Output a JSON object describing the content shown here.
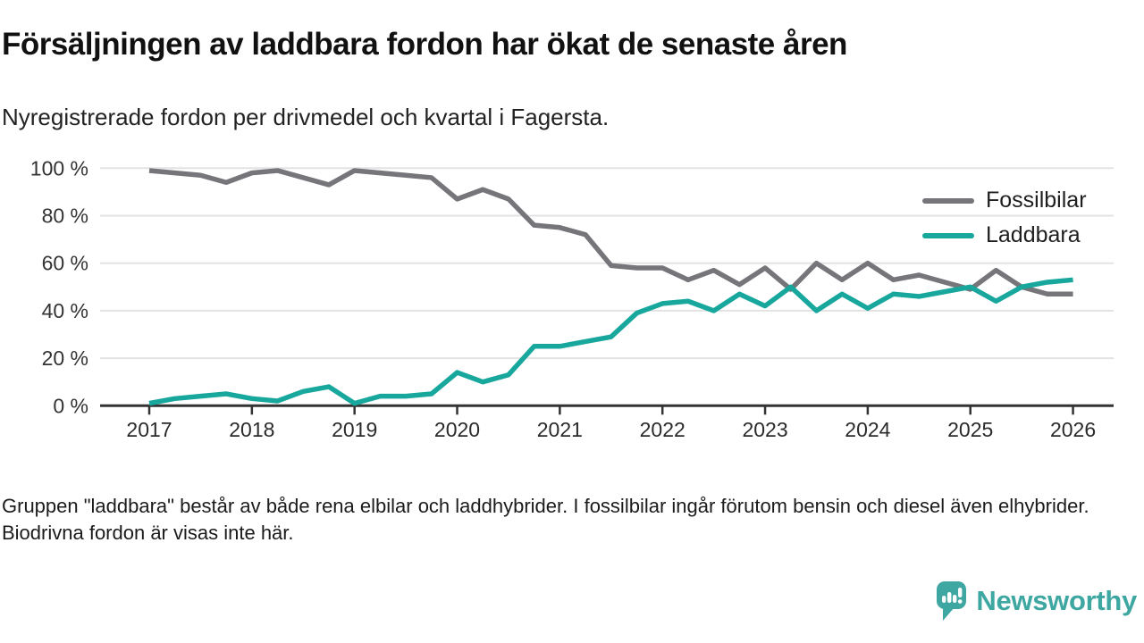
{
  "header": {
    "title": "Försäljningen av laddbara fordon har ökat de senaste åren",
    "subtitle": "Nyregistrerade fordon per drivmedel och kvartal i Fagersta."
  },
  "footer": {
    "note": "Gruppen \"laddbara\" består av både rena elbilar och laddhybrider. I fossilbilar ingår förutom bensin och diesel även elhybrider. Biodrivna fordon är visas inte här."
  },
  "logo": {
    "text": "Newsworthy",
    "color": "#3fa7a1"
  },
  "chart_data": {
    "type": "line",
    "title": "Försäljningen av laddbara fordon har ökat de senaste åren",
    "x_unit": "quarter",
    "x_range": "2017Q1–2026Q1",
    "ylim": [
      0,
      100
    ],
    "grid": "horizontal",
    "legend_position": "top-right",
    "colors": {
      "fossil": "#76757a",
      "laddbara": "#17a79c",
      "axis": "#333333",
      "gridline": "#e3e3e3"
    },
    "y_ticks": [
      {
        "label": "100 %",
        "value": 100
      },
      {
        "label": "80 %",
        "value": 80
      },
      {
        "label": "60 %",
        "value": 60
      },
      {
        "label": "40 %",
        "value": 40
      },
      {
        "label": "20 %",
        "value": 20
      },
      {
        "label": "0 %",
        "value": 0
      }
    ],
    "x_ticks": [
      {
        "label": "2017",
        "quarter_index": 0
      },
      {
        "label": "2018",
        "quarter_index": 4
      },
      {
        "label": "2019",
        "quarter_index": 8
      },
      {
        "label": "2020",
        "quarter_index": 12
      },
      {
        "label": "2021",
        "quarter_index": 16
      },
      {
        "label": "2022",
        "quarter_index": 20
      },
      {
        "label": "2023",
        "quarter_index": 24
      },
      {
        "label": "2024",
        "quarter_index": 28
      },
      {
        "label": "2025",
        "quarter_index": 32
      },
      {
        "label": "2026",
        "quarter_index": 36
      }
    ],
    "series": [
      {
        "name": "Fossilbilar",
        "color": "#76757a",
        "values": [
          99,
          98,
          97,
          94,
          98,
          99,
          96,
          93,
          99,
          98,
          97,
          96,
          87,
          91,
          87,
          76,
          75,
          72,
          59,
          58,
          58,
          53,
          57,
          51,
          58,
          49,
          60,
          53,
          60,
          53,
          55,
          52,
          49,
          57,
          50,
          47,
          47
        ]
      },
      {
        "name": "Laddbara",
        "color": "#17a79c",
        "values": [
          1,
          3,
          4,
          5,
          3,
          2,
          6,
          8,
          1,
          4,
          4,
          5,
          14,
          10,
          13,
          25,
          25,
          27,
          29,
          39,
          43,
          44,
          40,
          47,
          42,
          50,
          40,
          47,
          41,
          47,
          46,
          48,
          50,
          44,
          50,
          52,
          53
        ]
      }
    ]
  }
}
